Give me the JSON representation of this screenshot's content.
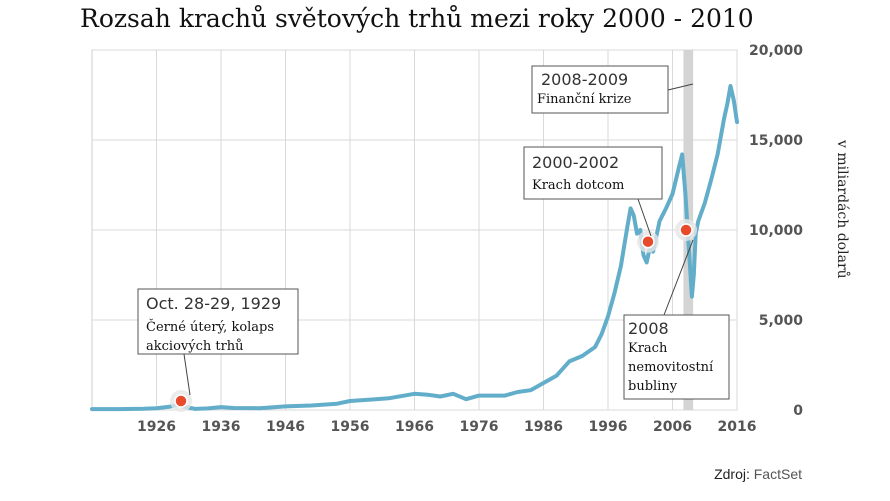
{
  "chart_data": {
    "type": "line",
    "title": "Rozsah krachů světových trhů mezi roky 2000 - 2010",
    "ylabel": "v miliardách dolarů",
    "xlim": [
      1916,
      2016
    ],
    "ylim": [
      0,
      20000
    ],
    "x_ticks": [
      1926,
      1936,
      1946,
      1956,
      1966,
      1976,
      1986,
      1996,
      2006,
      2016
    ],
    "y_ticks": [
      0,
      5000,
      10000,
      15000,
      20000
    ],
    "y_tick_labels": [
      "0",
      "5,000",
      "10,000",
      "15,000",
      "20,000"
    ],
    "grid": true,
    "series": [
      {
        "color": "#62adc9",
        "x": [
          1916,
          1920,
          1924,
          1926,
          1928,
          1929.7,
          1930,
          1932,
          1934,
          1936,
          1938,
          1942,
          1946,
          1950,
          1954,
          1956,
          1960,
          1962,
          1966,
          1968,
          1970,
          1972,
          1974,
          1976,
          1980,
          1982,
          1984,
          1986,
          1988,
          1990,
          1992,
          1994,
          1995,
          1996,
          1997,
          1998,
          1999,
          1999.5,
          2000,
          2000.5,
          2001,
          2001.5,
          2002,
          2002.7,
          2003,
          2004,
          2005,
          2006,
          2007,
          2007.5,
          2008,
          2008.5,
          2009,
          2009.3,
          2009.6,
          2010,
          2011,
          2012,
          2013,
          2014,
          2014.5,
          2015,
          2015.5,
          2016
        ],
        "y": [
          50,
          50,
          70,
          100,
          180,
          330,
          200,
          60,
          90,
          160,
          110,
          100,
          200,
          250,
          350,
          500,
          600,
          650,
          900,
          850,
          750,
          900,
          600,
          800,
          800,
          1000,
          1100,
          1500,
          1900,
          2700,
          3000,
          3500,
          4200,
          5200,
          6500,
          8000,
          10200,
          11200,
          10800,
          9800,
          10000,
          8600,
          8200,
          9400,
          8800,
          10500,
          11200,
          12000,
          13500,
          14200,
          12000,
          9200,
          6300,
          7500,
          9800,
          10500,
          11500,
          12800,
          14200,
          16200,
          17000,
          18000,
          17200,
          16000
        ],
        "values": [
          50,
          50,
          70,
          100,
          180,
          330,
          200,
          60,
          90,
          160,
          110,
          100,
          200,
          250,
          350,
          500,
          600,
          650,
          900,
          850,
          750,
          900,
          600,
          800,
          800,
          1000,
          1100,
          1500,
          1900,
          2700,
          3000,
          3500,
          4200,
          5200,
          6500,
          8000,
          10200,
          11200,
          10800,
          9800,
          10000,
          8600,
          8200,
          9400,
          8800,
          10500,
          11200,
          12000,
          13500,
          14200,
          12000,
          9200,
          6300,
          7500,
          9800,
          10500,
          11500,
          12800,
          14200,
          16200,
          17000,
          18000,
          17200,
          16000
        ]
      }
    ],
    "shaded_range": [
      2007.7,
      2009.2
    ],
    "markers": [
      {
        "x": 1929.8,
        "y": 500,
        "color": "#e84a2c"
      },
      {
        "x": 2002.2,
        "y": 9350,
        "color": "#e84a2c"
      },
      {
        "x": 2008.1,
        "y": 10000,
        "color": "#e84a2c"
      }
    ],
    "annotations": [
      {
        "id": "a1929",
        "title": "Oct. 28-29, 1929",
        "lines": [
          "Černé úterý, kolaps",
          "akciových trhů"
        ]
      },
      {
        "id": "a2000",
        "title": "2000-2002",
        "lines": [
          "Krach dotcom"
        ]
      },
      {
        "id": "a2008",
        "title": "2008",
        "lines": [
          "Krach",
          "nemovitostní",
          "bubliny"
        ]
      },
      {
        "id": "a2008b",
        "title": "2008-2009",
        "lines": [
          "Finanční krize"
        ]
      }
    ]
  },
  "source": {
    "label": "Zdroj:",
    "name": "FactSet"
  }
}
